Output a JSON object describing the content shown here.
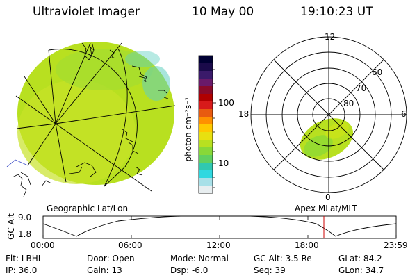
{
  "header": {
    "title": "Ultraviolet Imager",
    "date": "10 May 00",
    "time": "19:10:23 UT"
  },
  "colorbar": {
    "unit_label": "photon cm⁻²s⁻¹",
    "tick_labels": [
      "100",
      "10"
    ],
    "colors": [
      "#000033",
      "#1a0a4a",
      "#3a1a6a",
      "#6a1a6a",
      "#8a0a2a",
      "#b00000",
      "#d81a1a",
      "#e85a10",
      "#ff9000",
      "#ffc800",
      "#e8e010",
      "#b8e020",
      "#88d838",
      "#60d060",
      "#30c8b0",
      "#30d8e0",
      "#a8e0e8",
      "#e8eef0"
    ]
  },
  "left_map": {
    "caption": "Geographic Lat/Lon",
    "disc_color": "#b8e020"
  },
  "polar_plot": {
    "caption": "Apex MLat/MLT",
    "mlt_labels": {
      "top": "12",
      "left": "18",
      "right": "6",
      "bottom": "0"
    },
    "mlat_labels": [
      "60",
      "70",
      "80"
    ],
    "oval_color": "#b8e020"
  },
  "altitude_plot": {
    "axis_label": "GC Alt",
    "y_ticks": [
      "9.0",
      "1.8"
    ],
    "x_ticks": [
      "00:00",
      "06:00",
      "12:00",
      "18:00",
      "23:59"
    ],
    "marker_color": "#cc0000"
  },
  "info": {
    "flt": "Flt: LBHL",
    "ip": "IP: 36.0",
    "door": "Door: Open",
    "gain": "Gain: 13",
    "mode": "Mode: Normal",
    "dsp": "Dsp:   -6.0",
    "gcalt": "GC Alt: 3.5 Re",
    "seq": "Seq: 39",
    "glat": "GLat:  84.2",
    "glon": "GLon:  34.7"
  }
}
